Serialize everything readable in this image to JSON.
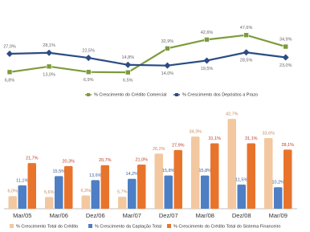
{
  "chart_data": [
    {
      "type": "line",
      "series": [
        {
          "name": "% Crescimento do Crédito Comercial",
          "color": "#7d9b3c",
          "marker": "square",
          "values": [
            6.8,
            13.0,
            6.9,
            6.5,
            32.9,
            42.6,
            47.6,
            34.9
          ],
          "value_labels": [
            "6,8%",
            "13,0%",
            "6,9%",
            "6,5%",
            "32,9%",
            "42,6%",
            "47,6%",
            "34,9%"
          ]
        },
        {
          "name": "% Crescimento dos Depósitos a Prazo",
          "color": "#2b4c84",
          "marker": "diamond",
          "values": [
            27.0,
            28.1,
            22.5,
            14.8,
            14.0,
            19.5,
            28.5,
            23.0
          ],
          "value_labels": [
            "27,0%",
            "28,1%",
            "22,5%",
            "14,8%",
            "14,0%",
            "19,5%",
            "28,5%",
            "23,0%"
          ]
        }
      ]
    },
    {
      "type": "bar",
      "categories": [
        "Mar/05",
        "Mar/06",
        "Dez/06",
        "Mar/07",
        "Dez/07",
        "Mar/08",
        "Dez/08",
        "Mar/09"
      ],
      "series": [
        {
          "name": "% Crescimento Total do Crédito",
          "color": "#f3c8a0",
          "values": [
            6.0,
            5.6,
            6.3,
            5.7,
            26.2,
            34.3,
            42.7,
            33.6
          ],
          "value_labels": [
            "6,0%",
            "5,6%",
            "6,3%",
            "5,7%",
            "26,2%",
            "34,3%",
            "42,7%",
            "33,6%"
          ]
        },
        {
          "name": "% Crescimento da Captação Total",
          "color": "#4e7fc4",
          "values": [
            11.1,
            15.5,
            13.6,
            14.2,
            15.8,
            15.8,
            11.5,
            10.2
          ],
          "value_labels": [
            "11,1%",
            "15,5%",
            "13,6%",
            "14,2%",
            "15,8%",
            "15,8%",
            "11,5%",
            "10,2%"
          ]
        },
        {
          "name": "% Crescimento do Crédito Total do Sistema Financeiro",
          "color": "#e8742c",
          "values": [
            21.7,
            20.3,
            20.7,
            21.0,
            27.9,
            31.1,
            31.1,
            28.1
          ],
          "value_labels": [
            "21,7%",
            "20,3%",
            "20,7%",
            "21,0%",
            "27,9%",
            "31,1%",
            "31,1%",
            "28,1%"
          ]
        }
      ]
    }
  ]
}
